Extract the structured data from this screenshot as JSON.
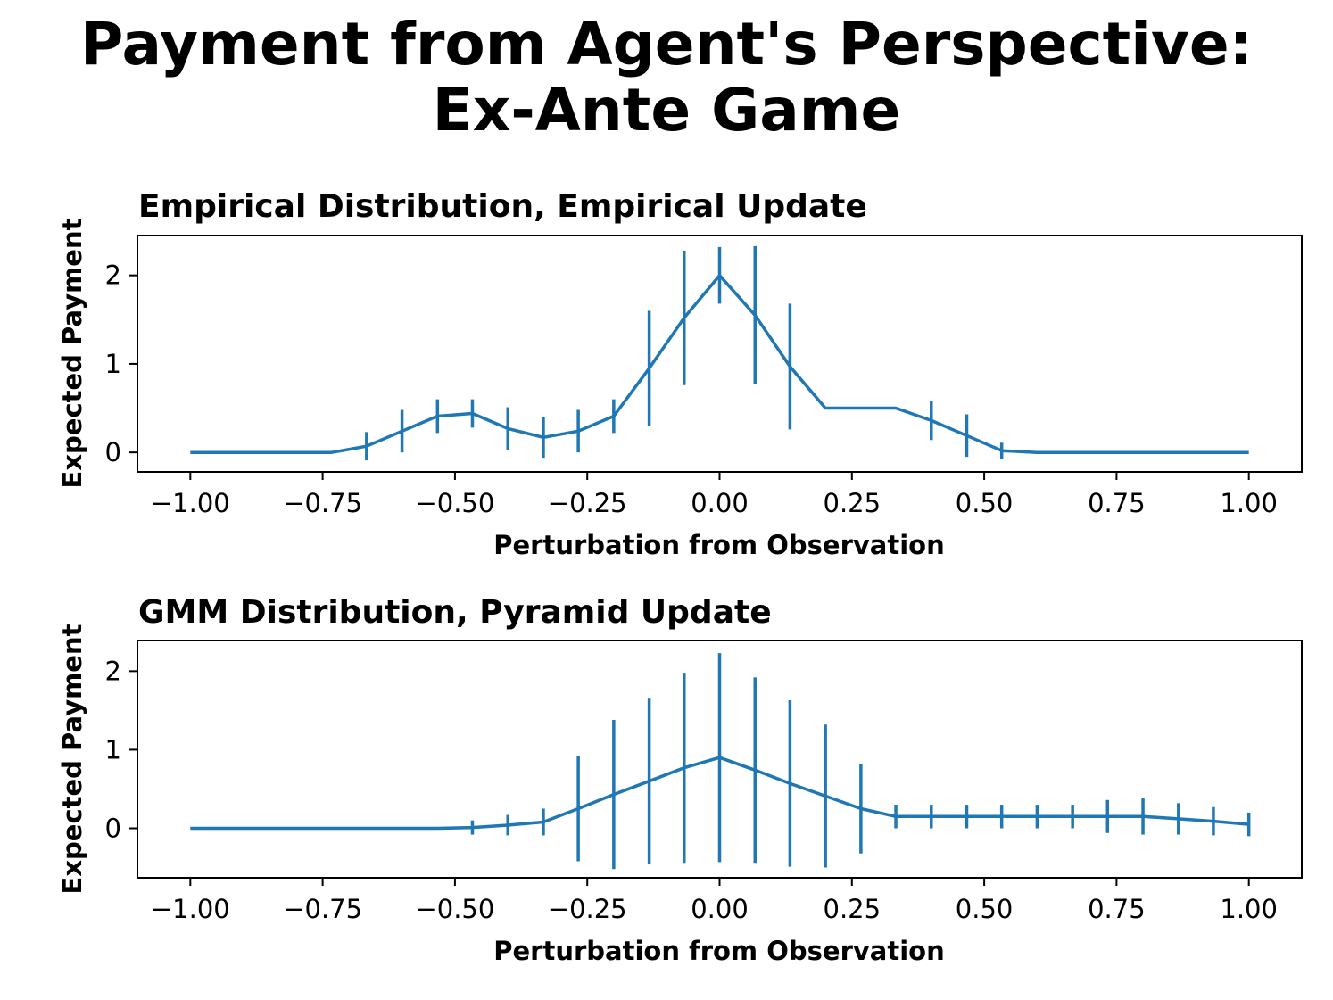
{
  "figure": {
    "suptitle_line1": "Payment from Agent's Perspective:",
    "suptitle_line2": "Ex-Ante Game"
  },
  "colors": {
    "series": "#1f77b4",
    "axes": "#000000"
  },
  "chart_data": [
    {
      "type": "line",
      "title": "Empirical Distribution, Empirical Update",
      "xlabel": "Perturbation from Observation",
      "ylabel": "Expected Payment",
      "xlim": [
        -1.1,
        1.1
      ],
      "ylim": [
        -0.22,
        2.45
      ],
      "xticks": [
        -1.0,
        -0.75,
        -0.5,
        -0.25,
        0.0,
        0.25,
        0.5,
        0.75,
        1.0
      ],
      "xtick_labels": [
        "−1.00",
        "−0.75",
        "−0.50",
        "−0.25",
        "0.00",
        "0.25",
        "0.50",
        "0.75",
        "1.00"
      ],
      "yticks": [
        0,
        1,
        2
      ],
      "ytick_labels": [
        "0",
        "1",
        "2"
      ],
      "error_bars": true,
      "grid": false,
      "series": [
        {
          "x": [
            -1.0,
            -0.933,
            -0.867,
            -0.8,
            -0.733,
            -0.667,
            -0.6,
            -0.533,
            -0.467,
            -0.4,
            -0.333,
            -0.267,
            -0.2,
            -0.133,
            -0.067,
            0.0,
            0.067,
            0.133,
            0.2,
            0.267,
            0.333,
            0.4,
            0.467,
            0.533,
            0.6,
            0.667,
            0.733,
            0.8,
            0.867,
            0.933,
            1.0
          ],
          "y": [
            0,
            0,
            0,
            0,
            0,
            0.07,
            0.24,
            0.41,
            0.44,
            0.27,
            0.17,
            0.24,
            0.41,
            0.95,
            1.52,
            2.0,
            1.55,
            0.97,
            0.5,
            0.5,
            0.5,
            0.36,
            0.19,
            0.02,
            0,
            0,
            0,
            0,
            0,
            0,
            0
          ],
          "err": [
            0,
            0,
            0,
            0,
            0,
            0.16,
            0.24,
            0.19,
            0.16,
            0.24,
            0.23,
            0.24,
            0.19,
            0.65,
            0.76,
            0.32,
            0.78,
            0.71,
            0,
            0,
            0,
            0.22,
            0.24,
            0.09,
            0,
            0,
            0,
            0,
            0,
            0,
            0
          ]
        }
      ]
    },
    {
      "type": "line",
      "title": "GMM Distribution, Pyramid Update",
      "xlabel": "Perturbation from Observation",
      "ylabel": "Expected Payment",
      "xlim": [
        -1.1,
        1.1
      ],
      "ylim": [
        -0.63,
        2.39
      ],
      "xticks": [
        -1.0,
        -0.75,
        -0.5,
        -0.25,
        0.0,
        0.25,
        0.5,
        0.75,
        1.0
      ],
      "xtick_labels": [
        "−1.00",
        "−0.75",
        "−0.50",
        "−0.25",
        "0.00",
        "0.25",
        "0.50",
        "0.75",
        "1.00"
      ],
      "yticks": [
        0,
        1,
        2
      ],
      "ytick_labels": [
        "0",
        "1",
        "2"
      ],
      "error_bars": true,
      "grid": false,
      "series": [
        {
          "x": [
            -1.0,
            -0.933,
            -0.867,
            -0.8,
            -0.733,
            -0.667,
            -0.6,
            -0.533,
            -0.467,
            -0.4,
            -0.333,
            -0.267,
            -0.2,
            -0.133,
            -0.067,
            0.0,
            0.067,
            0.133,
            0.2,
            0.267,
            0.333,
            0.4,
            0.467,
            0.533,
            0.6,
            0.667,
            0.733,
            0.8,
            0.867,
            0.933,
            1.0
          ],
          "y": [
            0,
            0,
            0,
            0,
            0,
            0,
            0,
            0,
            0.01,
            0.04,
            0.08,
            0.25,
            0.43,
            0.6,
            0.77,
            0.9,
            0.74,
            0.57,
            0.41,
            0.25,
            0.15,
            0.15,
            0.15,
            0.15,
            0.15,
            0.15,
            0.15,
            0.15,
            0.12,
            0.09,
            0.05
          ],
          "err": [
            0,
            0,
            0,
            0,
            0,
            0,
            0,
            0,
            0.09,
            0.13,
            0.17,
            0.67,
            0.95,
            1.05,
            1.21,
            1.33,
            1.18,
            1.06,
            0.91,
            0.57,
            0.15,
            0.15,
            0.15,
            0.15,
            0.15,
            0.15,
            0.21,
            0.23,
            0.2,
            0.18,
            0.15
          ]
        }
      ]
    }
  ]
}
